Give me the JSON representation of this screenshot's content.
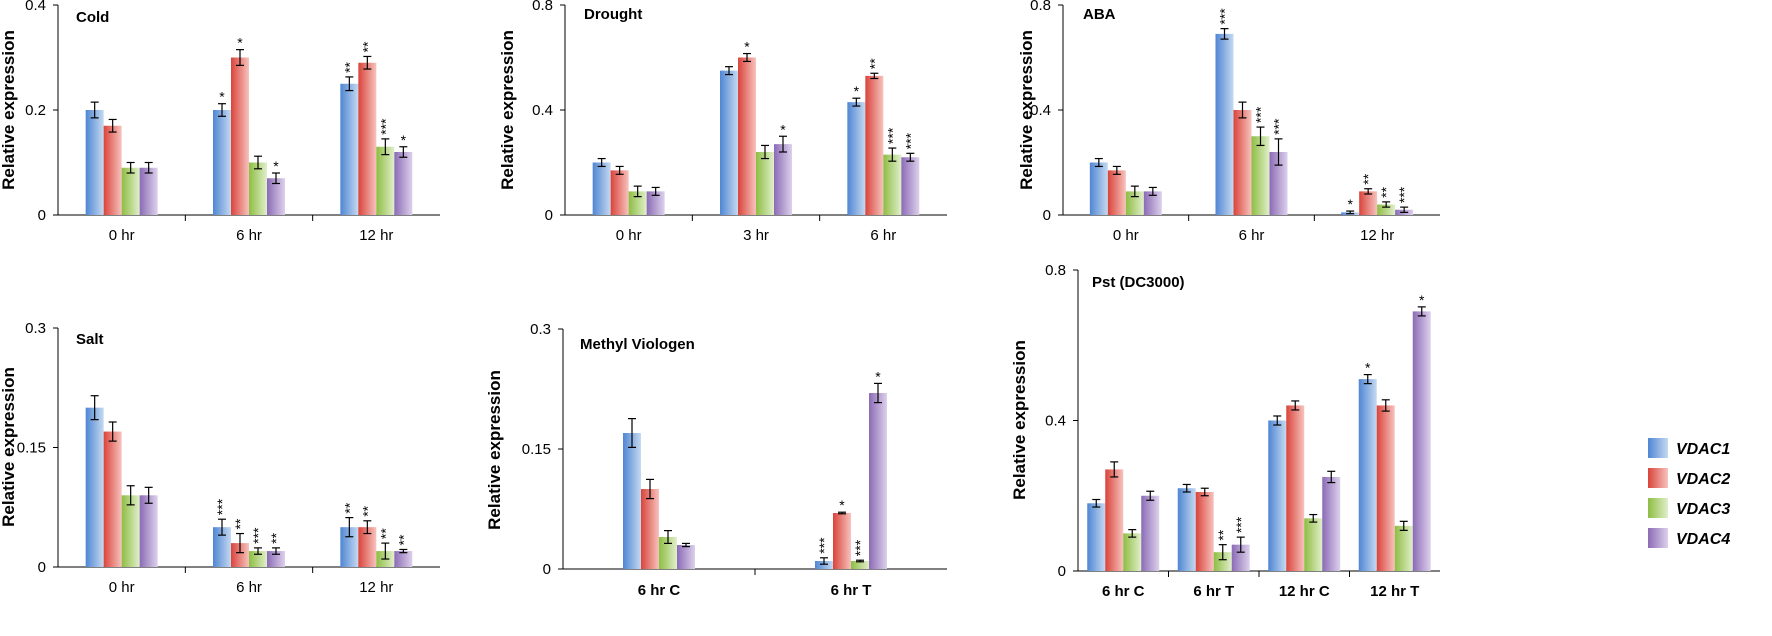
{
  "series_colors": {
    "VDAC1": [
      "#4f86d3",
      "#c5d9f1"
    ],
    "VDAC2": [
      "#d9443b",
      "#f7c3be"
    ],
    "VDAC3": [
      "#8ebd43",
      "#e1efcb"
    ],
    "VDAC4": [
      "#8b6bb5",
      "#ddd1ec"
    ]
  },
  "legend": [
    "VDAC1",
    "VDAC2",
    "VDAC3",
    "VDAC4"
  ],
  "chart_data": [
    {
      "type": "bar",
      "title": "Cold",
      "ylabel": "Relative expression",
      "yticks": [
        "0",
        "0.2",
        "0.4"
      ],
      "ylim": [
        0,
        0.4
      ],
      "bold_categories": false,
      "categories": [
        "0 hr",
        "6 hr",
        "12 hr"
      ],
      "series": [
        {
          "name": "VDAC1",
          "values": [
            0.2,
            0.2,
            0.25
          ],
          "errors": [
            0.015,
            0.012,
            0.013
          ],
          "sig": [
            "",
            "*",
            "**"
          ]
        },
        {
          "name": "VDAC2",
          "values": [
            0.17,
            0.3,
            0.29
          ],
          "errors": [
            0.012,
            0.015,
            0.012
          ],
          "sig": [
            "",
            "*",
            "**"
          ]
        },
        {
          "name": "VDAC3",
          "values": [
            0.09,
            0.1,
            0.13
          ],
          "errors": [
            0.01,
            0.012,
            0.015
          ],
          "sig": [
            "",
            "",
            "***"
          ]
        },
        {
          "name": "VDAC4",
          "values": [
            0.09,
            0.07,
            0.12
          ],
          "errors": [
            0.01,
            0.01,
            0.01
          ],
          "sig": [
            "",
            "*",
            "*"
          ]
        }
      ]
    },
    {
      "type": "bar",
      "title": "Drought",
      "ylabel": "Relative expression",
      "yticks": [
        "0",
        "0.4",
        "0.8"
      ],
      "ylim": [
        0,
        0.8
      ],
      "bold_categories": false,
      "categories": [
        "0 hr",
        "3 hr",
        "6 hr"
      ],
      "series": [
        {
          "name": "VDAC1",
          "values": [
            0.2,
            0.55,
            0.43
          ],
          "errors": [
            0.015,
            0.015,
            0.015
          ],
          "sig": [
            "",
            "",
            "*"
          ]
        },
        {
          "name": "VDAC2",
          "values": [
            0.17,
            0.6,
            0.53
          ],
          "errors": [
            0.015,
            0.015,
            0.01
          ],
          "sig": [
            "",
            "*",
            "**"
          ]
        },
        {
          "name": "VDAC3",
          "values": [
            0.09,
            0.24,
            0.23
          ],
          "errors": [
            0.02,
            0.025,
            0.025
          ],
          "sig": [
            "",
            "",
            "***"
          ]
        },
        {
          "name": "VDAC4",
          "values": [
            0.09,
            0.27,
            0.22
          ],
          "errors": [
            0.015,
            0.03,
            0.015
          ],
          "sig": [
            "",
            "*",
            "***"
          ]
        }
      ]
    },
    {
      "type": "bar",
      "title": "ABA",
      "ylabel": "Relative expression",
      "yticks": [
        "0",
        "0.4",
        "0.8"
      ],
      "ylim": [
        0,
        0.8
      ],
      "bold_categories": false,
      "categories": [
        "0 hr",
        "6 hr",
        "12 hr"
      ],
      "series": [
        {
          "name": "VDAC1",
          "values": [
            0.2,
            0.69,
            0.01
          ],
          "errors": [
            0.015,
            0.02,
            0.005
          ],
          "sig": [
            "",
            "***",
            "*"
          ]
        },
        {
          "name": "VDAC2",
          "values": [
            0.17,
            0.4,
            0.09
          ],
          "errors": [
            0.015,
            0.03,
            0.01
          ],
          "sig": [
            "",
            "",
            "**"
          ]
        },
        {
          "name": "VDAC3",
          "values": [
            0.09,
            0.3,
            0.04
          ],
          "errors": [
            0.02,
            0.035,
            0.01
          ],
          "sig": [
            "",
            "***",
            "**"
          ]
        },
        {
          "name": "VDAC4",
          "values": [
            0.09,
            0.24,
            0.02
          ],
          "errors": [
            0.015,
            0.05,
            0.01
          ],
          "sig": [
            "",
            "***",
            "***"
          ]
        }
      ]
    },
    {
      "type": "bar",
      "title": "Salt",
      "ylabel": "Relative expression",
      "yticks": [
        "0",
        "0.15",
        "0.3"
      ],
      "ylim": [
        0,
        0.3
      ],
      "bold_categories": false,
      "categories": [
        "0 hr",
        "6 hr",
        "12 hr"
      ],
      "series": [
        {
          "name": "VDAC1",
          "values": [
            0.2,
            0.05,
            0.05
          ],
          "errors": [
            0.015,
            0.01,
            0.012
          ],
          "sig": [
            "",
            "***",
            "**"
          ]
        },
        {
          "name": "VDAC2",
          "values": [
            0.17,
            0.03,
            0.05
          ],
          "errors": [
            0.012,
            0.012,
            0.008
          ],
          "sig": [
            "",
            "**",
            "**"
          ]
        },
        {
          "name": "VDAC3",
          "values": [
            0.09,
            0.02,
            0.02
          ],
          "errors": [
            0.012,
            0.004,
            0.01
          ],
          "sig": [
            "",
            "***",
            "**"
          ]
        },
        {
          "name": "VDAC4",
          "values": [
            0.09,
            0.02,
            0.02
          ],
          "errors": [
            0.01,
            0.004,
            0.002
          ],
          "sig": [
            "",
            "**",
            "**"
          ]
        }
      ]
    },
    {
      "type": "bar",
      "title": "Methyl Viologen",
      "ylabel": "Relative expression",
      "yticks": [
        "0",
        "0.15",
        "0.3"
      ],
      "ylim": [
        0,
        0.3
      ],
      "bold_categories": true,
      "categories": [
        "6 hr C",
        "6 hr T"
      ],
      "series": [
        {
          "name": "VDAC1",
          "values": [
            0.17,
            0.01
          ],
          "errors": [
            0.018,
            0.004
          ],
          "sig": [
            "",
            "***"
          ]
        },
        {
          "name": "VDAC2",
          "values": [
            0.1,
            0.07
          ],
          "errors": [
            0.012,
            0.001
          ],
          "sig": [
            "",
            "*"
          ]
        },
        {
          "name": "VDAC3",
          "values": [
            0.04,
            0.01
          ],
          "errors": [
            0.008,
            0.001
          ],
          "sig": [
            "",
            "***"
          ]
        },
        {
          "name": "VDAC4",
          "values": [
            0.03,
            0.22
          ],
          "errors": [
            0.002,
            0.012
          ],
          "sig": [
            "",
            "*"
          ]
        }
      ]
    },
    {
      "type": "bar",
      "title": "Pst (DC3000)",
      "ylabel": "Relative expression",
      "yticks": [
        "0",
        "0.4",
        "0.8"
      ],
      "ylim": [
        0,
        0.8
      ],
      "bold_categories": true,
      "categories": [
        "6 hr C",
        "6 hr T",
        "12 hr C",
        "12 hr T"
      ],
      "series": [
        {
          "name": "VDAC1",
          "values": [
            0.18,
            0.22,
            0.4,
            0.51
          ],
          "errors": [
            0.01,
            0.01,
            0.012,
            0.012
          ],
          "sig": [
            "",
            "",
            "",
            "*"
          ]
        },
        {
          "name": "VDAC2",
          "values": [
            0.27,
            0.21,
            0.44,
            0.44
          ],
          "errors": [
            0.02,
            0.01,
            0.012,
            0.015
          ],
          "sig": [
            "",
            "",
            "",
            ""
          ]
        },
        {
          "name": "VDAC3",
          "values": [
            0.1,
            0.05,
            0.14,
            0.12
          ],
          "errors": [
            0.01,
            0.02,
            0.01,
            0.012
          ],
          "sig": [
            "",
            "**",
            "",
            ""
          ]
        },
        {
          "name": "VDAC4",
          "values": [
            0.2,
            0.07,
            0.25,
            0.69
          ],
          "errors": [
            0.012,
            0.02,
            0.015,
            0.012
          ],
          "sig": [
            "",
            "***",
            "",
            "*"
          ]
        }
      ]
    }
  ]
}
